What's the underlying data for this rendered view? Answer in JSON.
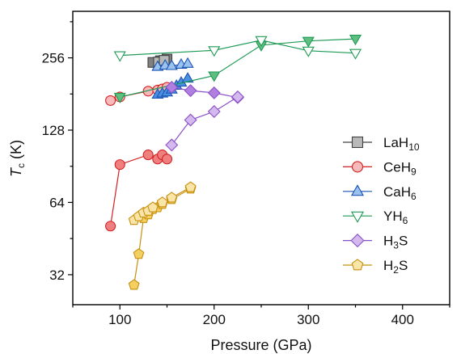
{
  "chart_data": {
    "type": "scatter",
    "xlabel": "Pressure (GPa)",
    "ylabel_main": "T",
    "ylabel_sub": "c",
    "ylabel_unit": " (K)",
    "xlim": [
      50,
      450
    ],
    "ylim": [
      24,
      400
    ],
    "yscale": "log2",
    "x_ticks": [
      100,
      200,
      300,
      400
    ],
    "x_tick_labels": [
      "100",
      "200",
      "300",
      "400"
    ],
    "y_ticks": [
      32,
      64,
      128,
      256
    ],
    "y_tick_labels": [
      "32",
      "64",
      "128",
      "256"
    ],
    "legend_position": "right",
    "series": [
      {
        "name_main": "LaH",
        "name_sub": "10",
        "marker": "square",
        "color": "#808080",
        "stroke": "#404040",
        "sublists": [
          {
            "fill": "filled",
            "points": [
              [
                135,
                245
              ],
              [
                143,
                249
              ],
              [
                150,
                253
              ]
            ]
          },
          {
            "fill": "light",
            "points": [
              [
                141,
                246
              ],
              [
                147,
                250
              ]
            ]
          }
        ]
      },
      {
        "name_main": "CeH",
        "name_sub": "9",
        "marker": "circle",
        "color": "#f08080",
        "stroke": "#d42020",
        "sublists": [
          {
            "fill": "filled",
            "points": [
              [
                90,
                51
              ],
              [
                100,
                92
              ],
              [
                130,
                101
              ],
              [
                140,
                97
              ],
              [
                145,
                101
              ],
              [
                150,
                97
              ]
            ]
          },
          {
            "fill": "light",
            "points": [
              [
                90,
                170
              ],
              [
                100,
                176
              ],
              [
                130,
                186
              ],
              [
                140,
                188
              ],
              [
                145,
                190
              ],
              [
                150,
                193
              ]
            ]
          }
        ]
      },
      {
        "name_main": "CaH",
        "name_sub": "6",
        "marker": "triangle-up",
        "color": "#4a90e2",
        "stroke": "#1a55b4",
        "sublists": [
          {
            "fill": "filled",
            "points": [
              [
                140,
                180
              ],
              [
                145,
                182
              ],
              [
                150,
                184
              ],
              [
                155,
                189
              ],
              [
                160,
                196
              ],
              [
                165,
                202
              ],
              [
                172,
                210
              ]
            ]
          },
          {
            "fill": "light",
            "points": [
              [
                140,
                235
              ],
              [
                148,
                238
              ],
              [
                155,
                237
              ],
              [
                165,
                240
              ],
              [
                172,
                242
              ]
            ]
          }
        ]
      },
      {
        "name_main": "YH",
        "name_sub": "6",
        "marker": "triangle-down",
        "color": "#5fbf80",
        "stroke": "#1e9a55",
        "sublists": [
          {
            "fill": "filled",
            "points": [
              [
                100,
                176
              ],
              [
                200,
                216
              ],
              [
                250,
                289
              ],
              [
                300,
                301
              ],
              [
                350,
                307
              ]
            ]
          },
          {
            "fill": "hollow",
            "points": [
              [
                100,
                262
              ],
              [
                200,
                275
              ],
              [
                250,
                303
              ],
              [
                300,
                274
              ],
              [
                350,
                268
              ]
            ]
          }
        ]
      },
      {
        "name_main": "H",
        "name_sub": "3",
        "name_tail": "S",
        "marker": "diamond",
        "color": "#b07fe0",
        "stroke": "#8a50c8",
        "sublists": [
          {
            "fill": "filled",
            "points": [
              [
                155,
                193
              ],
              [
                175,
                187
              ],
              [
                200,
                183
              ],
              [
                225,
                175
              ]
            ]
          },
          {
            "fill": "light",
            "points": [
              [
                155,
                111
              ],
              [
                175,
                141
              ],
              [
                200,
                153
              ],
              [
                225,
                176
              ]
            ]
          }
        ]
      },
      {
        "name_main": "H",
        "name_sub": "2",
        "name_tail": "S",
        "marker": "pentagon",
        "color": "#f4d060",
        "stroke": "#c89010",
        "sublists": [
          {
            "fill": "filled",
            "points": [
              [
                115,
                29
              ],
              [
                120,
                39
              ],
              [
                125,
                55
              ],
              [
                130,
                57
              ],
              [
                135,
                60
              ],
              [
                140,
                61
              ],
              [
                145,
                63
              ],
              [
                155,
                66
              ],
              [
                175,
                73
              ]
            ]
          },
          {
            "fill": "light",
            "points": [
              [
                115,
                54
              ],
              [
                120,
                56
              ],
              [
                125,
                58
              ],
              [
                130,
                59
              ],
              [
                135,
                61
              ],
              [
                145,
                64
              ],
              [
                155,
                67
              ],
              [
                175,
                74
              ]
            ]
          }
        ]
      }
    ]
  }
}
